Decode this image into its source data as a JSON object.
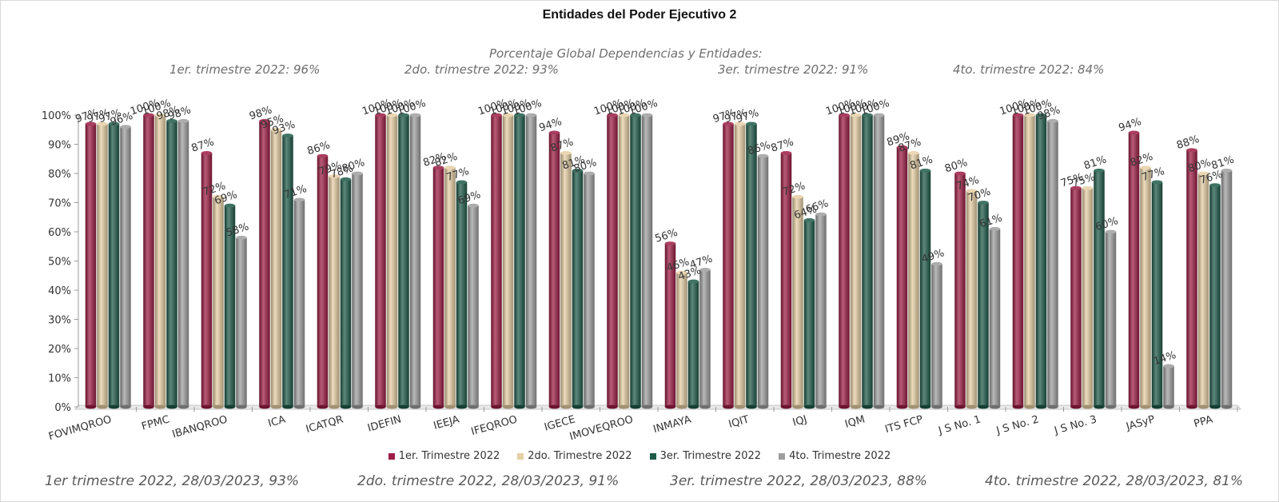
{
  "header": {
    "global_label": "Porcentaje Global  Dependencias y Entidades:",
    "q1": "1er. trimestre 2022: 96%",
    "q2": "2do. trimestre 2022: 93%",
    "q3": "3er. trimestre 2022: 91%",
    "q4": "4to. trimestre 2022: 84%"
  },
  "footer": {
    "q1": "1er trimestre  2022,  28/03/2023, 93%",
    "q2": "2do. trimestre 2022, 28/03/2023, 91%",
    "q3": "3er. trimestre 2022, 28/03/2023, 88%",
    "q4": "4to. trimestre 2022, 28/03/2023, 81%"
  },
  "colors": {
    "q1": "#9c1c44",
    "q2": "#e6cfa4",
    "q3": "#1e5a48",
    "q4": "#9e9e9e"
  },
  "chart_data": {
    "type": "bar",
    "title": "Entidades del Poder Ejecutivo 2",
    "ylim": [
      0,
      100
    ],
    "yticks": [
      "0%",
      "10%",
      "20%",
      "30%",
      "40%",
      "50%",
      "60%",
      "70%",
      "80%",
      "90%",
      "100%"
    ],
    "legend_position": "bottom",
    "categories": [
      "FOVIMQROO",
      "FPMC",
      "IBANQROO",
      "ICA",
      "ICATQR",
      "IDEFIN",
      "IEEJA",
      "IFEQROO",
      "IGECE",
      "IMOVEQROO",
      "INMAYA",
      "IQIT",
      "IQJ",
      "IQM",
      "ITS FCP",
      "J S No. 1",
      "J S No. 2",
      "J S No. 3",
      "JASyP",
      "PPA"
    ],
    "series": [
      {
        "name": "1er. Trimestre 2022",
        "values": [
          97,
          100,
          87,
          98,
          86,
          100,
          82,
          100,
          94,
          100,
          56,
          97,
          87,
          100,
          89,
          80,
          100,
          75,
          94,
          88
        ]
      },
      {
        "name": "2do. Trimestre 2022",
        "values": [
          97,
          100,
          72,
          95,
          79,
          100,
          82,
          100,
          87,
          100,
          46,
          97,
          72,
          100,
          87,
          74,
          100,
          75,
          82,
          80
        ]
      },
      {
        "name": "3er. Trimestre 2022",
        "values": [
          97,
          98,
          69,
          93,
          78,
          100,
          77,
          100,
          81,
          100,
          43,
          97,
          64,
          100,
          81,
          70,
          100,
          81,
          77,
          76
        ]
      },
      {
        "name": "4to. Trimestre 2022",
        "values": [
          96,
          98,
          58,
          71,
          80,
          100,
          69,
          100,
          80,
          100,
          47,
          86,
          66,
          100,
          49,
          61,
          98,
          60,
          14,
          81
        ]
      }
    ]
  }
}
